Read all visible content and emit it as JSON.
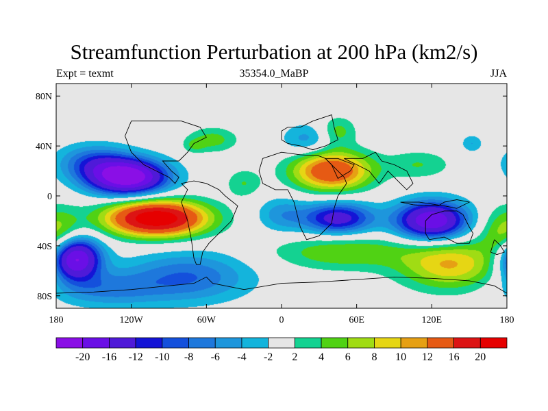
{
  "chart_data": {
    "type": "contour_map",
    "title": "Streamfunction Perturbation at 200 hPa (km2/s)",
    "left_subtitle": "Expt = texmt",
    "center_subtitle": "35354.0_MaBP",
    "right_subtitle": "JJA",
    "x_tick_labels": [
      "180",
      "120W",
      "60W",
      "0",
      "60E",
      "120E",
      "180"
    ],
    "x_tick_values": [
      -180,
      -120,
      -60,
      0,
      60,
      120,
      180
    ],
    "y_tick_labels": [
      "80N",
      "40N",
      "0",
      "40S",
      "80S"
    ],
    "y_tick_values": [
      80,
      40,
      0,
      -40,
      -80
    ],
    "xlim": [
      -180,
      180
    ],
    "ylim": [
      -90,
      90
    ],
    "colorbar_labels": [
      "-20",
      "-16",
      "-12",
      "-10",
      "-8",
      "-6",
      "-4",
      "-2",
      "2",
      "4",
      "6",
      "8",
      "10",
      "12",
      "16",
      "20"
    ],
    "colorbar_colors": [
      "#8a0fe6",
      "#6a0fe6",
      "#4f1ad8",
      "#1414d6",
      "#1450dc",
      "#1e78dc",
      "#1e96dc",
      "#14b4dc",
      "#e6e6e6",
      "#14d291",
      "#50d214",
      "#a0dc14",
      "#e6d614",
      "#e6a014",
      "#e65a14",
      "#dc1414",
      "#e60000"
    ],
    "colorbar_indices": [
      0,
      1,
      2,
      3,
      4,
      5,
      6,
      7,
      8,
      9,
      10,
      11,
      12,
      13,
      14,
      15,
      16
    ],
    "anomalies": [
      {
        "lon": -123,
        "lat": 15,
        "amp": -24,
        "slon": 22,
        "slat": 10
      },
      {
        "lon": -165,
        "lat": -50,
        "amp": -22,
        "slon": 14,
        "slat": 12
      },
      {
        "lon": 45,
        "lat": -18,
        "amp": -14,
        "slon": 20,
        "slat": 9
      },
      {
        "lon": 120,
        "lat": -20,
        "amp": -20,
        "slon": 20,
        "slat": 11
      },
      {
        "lon": -150,
        "lat": 27,
        "amp": -8,
        "slon": 20,
        "slat": 10
      },
      {
        "lon": -75,
        "lat": -65,
        "amp": -8,
        "slon": 35,
        "slat": 14
      },
      {
        "lon": -140,
        "lat": -75,
        "amp": -6,
        "slon": 30,
        "slat": 10
      },
      {
        "lon": 20,
        "lat": 45,
        "amp": -5,
        "slon": 14,
        "slat": 9
      },
      {
        "lon": 0,
        "lat": -15,
        "amp": -5,
        "slon": 14,
        "slat": 10
      },
      {
        "lon": 152,
        "lat": 42,
        "amp": -4,
        "slon": 6,
        "slat": 5
      },
      {
        "lon": -100,
        "lat": -18,
        "amp": 24,
        "slon": 28,
        "slat": 10
      },
      {
        "lon": 40,
        "lat": 20,
        "amp": 16,
        "slon": 22,
        "slat": 11
      },
      {
        "lon": 135,
        "lat": -55,
        "amp": 10,
        "slon": 28,
        "slat": 14
      },
      {
        "lon": -55,
        "lat": 45,
        "amp": 5,
        "slon": 14,
        "slat": 7
      },
      {
        "lon": 45,
        "lat": 52,
        "amp": 5,
        "slon": 10,
        "slat": 8
      },
      {
        "lon": 110,
        "lat": 25,
        "amp": 4,
        "slon": 18,
        "slat": 8
      },
      {
        "lon": -30,
        "lat": 10,
        "amp": 4,
        "slon": 10,
        "slat": 8
      },
      {
        "lon": 50,
        "lat": -45,
        "amp": 6,
        "slon": 40,
        "slat": 10
      },
      {
        "lon": 180,
        "lat": -30,
        "amp": 4,
        "slon": 14,
        "slat": 14
      },
      {
        "lon": -180,
        "lat": -30,
        "amp": 4,
        "slon": 14,
        "slat": 14
      },
      {
        "lon": -70,
        "lat": 40,
        "amp": 3,
        "slon": 6,
        "slat": 4
      }
    ],
    "coastlines": [
      [
        [
          0,
          52
        ],
        [
          5,
          55
        ],
        [
          15,
          55
        ],
        [
          25,
          60
        ],
        [
          40,
          65
        ],
        [
          42,
          55
        ],
        [
          45,
          45
        ],
        [
          35,
          40
        ],
        [
          25,
          37
        ],
        [
          15,
          40
        ],
        [
          5,
          42
        ],
        [
          0,
          45
        ],
        [
          0,
          52
        ]
      ],
      [
        [
          -15,
          30
        ],
        [
          0,
          35
        ],
        [
          15,
          33
        ],
        [
          30,
          32
        ],
        [
          35,
          30
        ],
        [
          50,
          15
        ],
        [
          52,
          10
        ],
        [
          45,
          0
        ],
        [
          42,
          -10
        ],
        [
          40,
          -22
        ],
        [
          30,
          -32
        ],
        [
          20,
          -35
        ],
        [
          15,
          -25
        ],
        [
          10,
          -5
        ],
        [
          5,
          5
        ],
        [
          -5,
          5
        ],
        [
          -15,
          10
        ],
        [
          -18,
          20
        ],
        [
          -15,
          30
        ]
      ],
      [
        [
          35,
          30
        ],
        [
          40,
          25
        ],
        [
          45,
          14
        ],
        [
          55,
          20
        ],
        [
          58,
          25
        ],
        [
          50,
          28
        ],
        [
          45,
          30
        ],
        [
          35,
          30
        ]
      ],
      [
        [
          50,
          30
        ],
        [
          65,
          30
        ],
        [
          75,
          35
        ],
        [
          80,
          28
        ],
        [
          90,
          25
        ],
        [
          100,
          20
        ],
        [
          105,
          10
        ],
        [
          100,
          5
        ],
        [
          95,
          10
        ],
        [
          85,
          20
        ],
        [
          78,
          10
        ],
        [
          70,
          20
        ],
        [
          60,
          25
        ],
        [
          50,
          30
        ]
      ],
      [
        [
          95,
          -5
        ],
        [
          105,
          -7
        ],
        [
          115,
          -8
        ],
        [
          125,
          -8
        ],
        [
          130,
          -5
        ],
        [
          140,
          -3
        ],
        [
          150,
          -5
        ],
        [
          140,
          -10
        ],
        [
          130,
          -8
        ],
        [
          110,
          -5
        ],
        [
          95,
          -5
        ]
      ],
      [
        [
          115,
          -20
        ],
        [
          120,
          -15
        ],
        [
          130,
          -12
        ],
        [
          140,
          -12
        ],
        [
          145,
          -15
        ],
        [
          150,
          -25
        ],
        [
          153,
          -30
        ],
        [
          150,
          -38
        ],
        [
          140,
          -38
        ],
        [
          130,
          -33
        ],
        [
          118,
          -35
        ],
        [
          115,
          -30
        ],
        [
          115,
          -20
        ]
      ],
      [
        [
          -80,
          10
        ],
        [
          -75,
          5
        ],
        [
          -80,
          -5
        ],
        [
          -75,
          -20
        ],
        [
          -72,
          -35
        ],
        [
          -70,
          -50
        ],
        [
          -68,
          -55
        ],
        [
          -65,
          -55
        ],
        [
          -63,
          -45
        ],
        [
          -58,
          -38
        ],
        [
          -50,
          -30
        ],
        [
          -40,
          -20
        ],
        [
          -35,
          -8
        ],
        [
          -45,
          0
        ],
        [
          -50,
          5
        ],
        [
          -60,
          10
        ],
        [
          -70,
          12
        ],
        [
          -80,
          10
        ]
      ],
      [
        [
          -125,
          48
        ],
        [
          -120,
          35
        ],
        [
          -110,
          25
        ],
        [
          -100,
          20
        ],
        [
          -90,
          15
        ],
        [
          -85,
          10
        ],
        [
          -82,
          15
        ],
        [
          -88,
          20
        ],
        [
          -95,
          28
        ],
        [
          -82,
          28
        ],
        [
          -75,
          35
        ],
        [
          -70,
          42
        ],
        [
          -60,
          47
        ],
        [
          -65,
          55
        ],
        [
          -80,
          60
        ],
        [
          -95,
          60
        ],
        [
          -120,
          60
        ],
        [
          -125,
          48
        ]
      ],
      [
        [
          -180,
          -78
        ],
        [
          -150,
          -77
        ],
        [
          -120,
          -75
        ],
        [
          -90,
          -72
        ],
        [
          -70,
          -70
        ],
        [
          -60,
          -65
        ],
        [
          -55,
          -70
        ],
        [
          -30,
          -75
        ],
        [
          0,
          -70
        ],
        [
          30,
          -69
        ],
        [
          60,
          -67
        ],
        [
          90,
          -65
        ],
        [
          120,
          -66
        ],
        [
          150,
          -68
        ],
        [
          170,
          -72
        ],
        [
          180,
          -78
        ]
      ],
      [
        [
          170,
          -35
        ],
        [
          175,
          -40
        ],
        [
          178,
          -45
        ],
        [
          172,
          -47
        ],
        [
          167,
          -45
        ],
        [
          170,
          -35
        ]
      ]
    ]
  }
}
